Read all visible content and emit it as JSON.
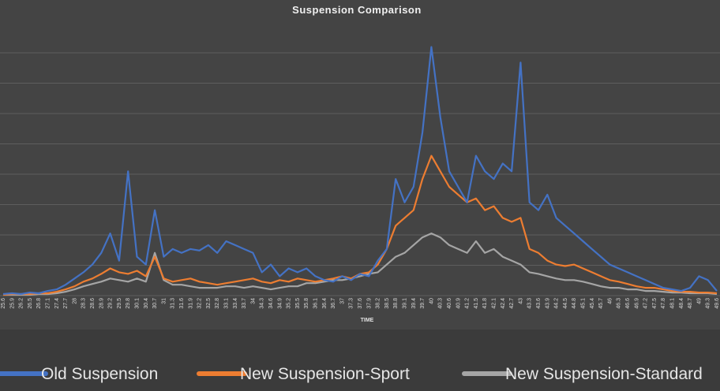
{
  "chart_data": {
    "type": "line",
    "title": "Suspension Comparison",
    "xlabel": "TIME",
    "ylabel": "",
    "ylim": [
      0,
      350
    ],
    "grid": true,
    "legend_position": "bottom",
    "colors": {
      "background": "#444444",
      "grid": "#5e5e5e",
      "title": "#f0f0f0"
    },
    "x_tick_labels": [
      "25.6",
      "25.9",
      "26.2",
      "26.5",
      "26.8",
      "27.1",
      "27.4",
      "27.7",
      "28",
      "28.3",
      "28.6",
      "28.9",
      "29.2",
      "29.5",
      "29.8",
      "30.1",
      "30.4",
      "30.7",
      "31",
      "31.3",
      "31.6",
      "31.9",
      "32.2",
      "32.5",
      "32.8",
      "33.1",
      "33.4",
      "33.7",
      "34",
      "34.3",
      "34.6",
      "34.9",
      "35.2",
      "35.5",
      "35.8",
      "36.1",
      "36.4",
      "36.7",
      "37",
      "37.3",
      "37.6",
      "37.9",
      "38.2",
      "38.5",
      "38.8",
      "39.1",
      "39.4",
      "39.7",
      "40",
      "40.3",
      "40.6",
      "40.9",
      "41.2",
      "41.5",
      "41.8",
      "42.1",
      "42.4",
      "42.7",
      "43",
      "43.3",
      "43.6",
      "43.9",
      "44.2",
      "44.5",
      "44.8",
      "45.1",
      "45.4",
      "45.7",
      "46",
      "46.3",
      "46.6",
      "46.9",
      "47.2",
      "47.5",
      "47.8",
      "48.1",
      "48.4",
      "48.7",
      "49",
      "49.3",
      "49.6"
    ],
    "x": [
      25.6,
      25.9,
      26.2,
      26.5,
      26.8,
      27.1,
      27.4,
      27.7,
      28,
      28.3,
      28.6,
      28.9,
      29.2,
      29.5,
      29.8,
      30.1,
      30.4,
      30.7,
      31,
      31.3,
      31.6,
      31.9,
      32.2,
      32.5,
      32.8,
      33.1,
      33.4,
      33.7,
      34,
      34.3,
      34.6,
      34.9,
      35.2,
      35.5,
      35.8,
      36.1,
      36.4,
      36.7,
      37,
      37.3,
      37.6,
      37.9,
      38.2,
      38.5,
      38.8,
      39.1,
      39.4,
      39.7,
      40,
      40.3,
      40.6,
      40.9,
      41.2,
      41.5,
      41.8,
      42.1,
      42.4,
      42.7,
      43,
      43.3,
      43.6,
      43.9,
      44.2,
      44.5,
      44.8,
      45.1,
      45.4,
      45.7,
      46,
      46.3,
      46.6,
      46.9,
      47.2,
      47.5,
      47.8,
      48.1,
      48.4,
      48.7,
      49,
      49.3,
      49.6
    ],
    "series": [
      {
        "name": "Old Suspension",
        "color": "#4472c4",
        "values": [
          2,
          3,
          2,
          4,
          3,
          6,
          8,
          14,
          22,
          30,
          40,
          55,
          80,
          45,
          160,
          50,
          40,
          110,
          50,
          60,
          55,
          60,
          58,
          65,
          55,
          70,
          65,
          60,
          55,
          30,
          40,
          25,
          35,
          30,
          35,
          25,
          20,
          18,
          25,
          20,
          28,
          25,
          45,
          60,
          150,
          120,
          140,
          210,
          320,
          230,
          160,
          140,
          120,
          180,
          160,
          150,
          170,
          160,
          300,
          120,
          110,
          130,
          100,
          90,
          80,
          70,
          60,
          50,
          40,
          35,
          30,
          25,
          20,
          15,
          10,
          8,
          6,
          10,
          25,
          20,
          6
        ]
      },
      {
        "name": "New Suspension-Sport",
        "color": "#ed7d31",
        "values": [
          1,
          2,
          2,
          2,
          3,
          3,
          5,
          8,
          12,
          18,
          22,
          28,
          35,
          30,
          28,
          32,
          25,
          50,
          22,
          18,
          20,
          22,
          18,
          16,
          14,
          16,
          18,
          20,
          22,
          18,
          16,
          20,
          18,
          22,
          20,
          18,
          20,
          22,
          25,
          22,
          28,
          30,
          40,
          60,
          90,
          100,
          110,
          150,
          180,
          160,
          140,
          130,
          120,
          125,
          110,
          115,
          100,
          95,
          100,
          60,
          55,
          45,
          40,
          38,
          40,
          35,
          30,
          25,
          20,
          18,
          15,
          12,
          10,
          10,
          8,
          6,
          5,
          5,
          4,
          4,
          3
        ]
      },
      {
        "name": "New Suspension-Standard",
        "color": "#a5a5a5",
        "values": [
          1,
          1,
          1,
          1,
          2,
          2,
          3,
          5,
          8,
          12,
          15,
          18,
          22,
          20,
          18,
          22,
          18,
          55,
          20,
          14,
          14,
          12,
          10,
          10,
          10,
          12,
          12,
          10,
          12,
          10,
          8,
          10,
          12,
          12,
          16,
          16,
          18,
          20,
          20,
          22,
          25,
          28,
          30,
          40,
          50,
          55,
          65,
          75,
          80,
          75,
          65,
          60,
          55,
          70,
          55,
          60,
          50,
          45,
          40,
          30,
          28,
          25,
          22,
          20,
          20,
          18,
          15,
          12,
          10,
          10,
          8,
          8,
          6,
          6,
          5,
          4,
          4,
          3,
          3,
          3,
          2
        ]
      }
    ]
  }
}
